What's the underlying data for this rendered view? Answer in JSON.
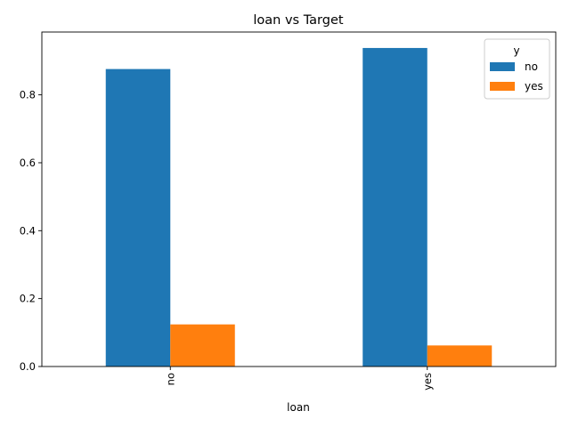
{
  "chart_data": {
    "type": "bar",
    "title": "loan vs Target",
    "xlabel": "loan",
    "ylabel": "",
    "categories": [
      "no",
      "yes"
    ],
    "series": [
      {
        "name": "no",
        "values": [
          0.876,
          0.938
        ],
        "color": "#1f77b4"
      },
      {
        "name": "yes",
        "values": [
          0.124,
          0.062
        ],
        "color": "#ff7f0e"
      }
    ],
    "ylim": [
      0,
      0.985
    ],
    "yticks": [
      0.0,
      0.2,
      0.4,
      0.6,
      0.8
    ],
    "ytick_labels": [
      "0.0",
      "0.2",
      "0.4",
      "0.6",
      "0.8"
    ],
    "legend": {
      "title": "y",
      "position": "top-right"
    },
    "grid": false
  }
}
